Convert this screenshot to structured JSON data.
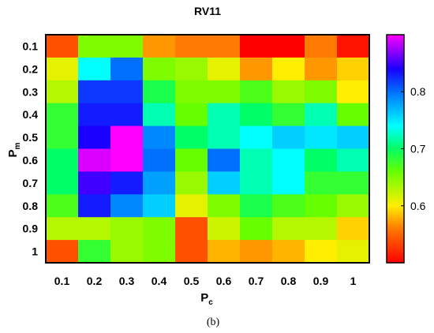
{
  "chart_data": {
    "type": "heatmap",
    "title": "RV11",
    "xlabel": {
      "main": "P",
      "sub": "c"
    },
    "ylabel": {
      "main": "P",
      "sub": "m"
    },
    "x_categories": [
      "0.1",
      "0.2",
      "0.3",
      "0.4",
      "0.5",
      "0.6",
      "0.7",
      "0.8",
      "0.9",
      "1"
    ],
    "y_categories": [
      "0.1",
      "0.2",
      "0.3",
      "0.4",
      "0.5",
      "0.6",
      "0.7",
      "0.8",
      "0.9",
      "1"
    ],
    "values": [
      [
        0.54,
        0.65,
        0.65,
        0.57,
        0.56,
        0.56,
        0.5,
        0.5,
        0.56,
        0.51
      ],
      [
        0.61,
        0.74,
        0.8,
        0.65,
        0.64,
        0.61,
        0.57,
        0.6,
        0.57,
        0.59
      ],
      [
        0.63,
        0.82,
        0.82,
        0.69,
        0.65,
        0.65,
        0.67,
        0.64,
        0.65,
        0.6
      ],
      [
        0.68,
        0.83,
        0.83,
        0.72,
        0.66,
        0.72,
        0.7,
        0.68,
        0.72,
        0.66
      ],
      [
        0.68,
        0.84,
        0.94,
        0.79,
        0.7,
        0.72,
        0.74,
        0.76,
        0.75,
        0.76
      ],
      [
        0.7,
        0.89,
        0.94,
        0.8,
        0.66,
        0.8,
        0.72,
        0.74,
        0.7,
        0.72
      ],
      [
        0.7,
        0.85,
        0.83,
        0.78,
        0.64,
        0.76,
        0.72,
        0.74,
        0.68,
        0.68
      ],
      [
        0.67,
        0.83,
        0.79,
        0.76,
        0.61,
        0.65,
        0.69,
        0.67,
        0.66,
        0.64
      ],
      [
        0.63,
        0.63,
        0.64,
        0.65,
        0.54,
        0.62,
        0.66,
        0.63,
        0.63,
        0.59
      ],
      [
        0.54,
        0.68,
        0.64,
        0.65,
        0.54,
        0.58,
        0.57,
        0.58,
        0.6,
        0.61
      ]
    ],
    "colorbar": {
      "range": [
        0.5,
        0.9
      ],
      "ticks": [
        "0.6",
        "0.7",
        "0.8"
      ],
      "colormap": "jet"
    },
    "grid": false
  },
  "caption": "(b)"
}
